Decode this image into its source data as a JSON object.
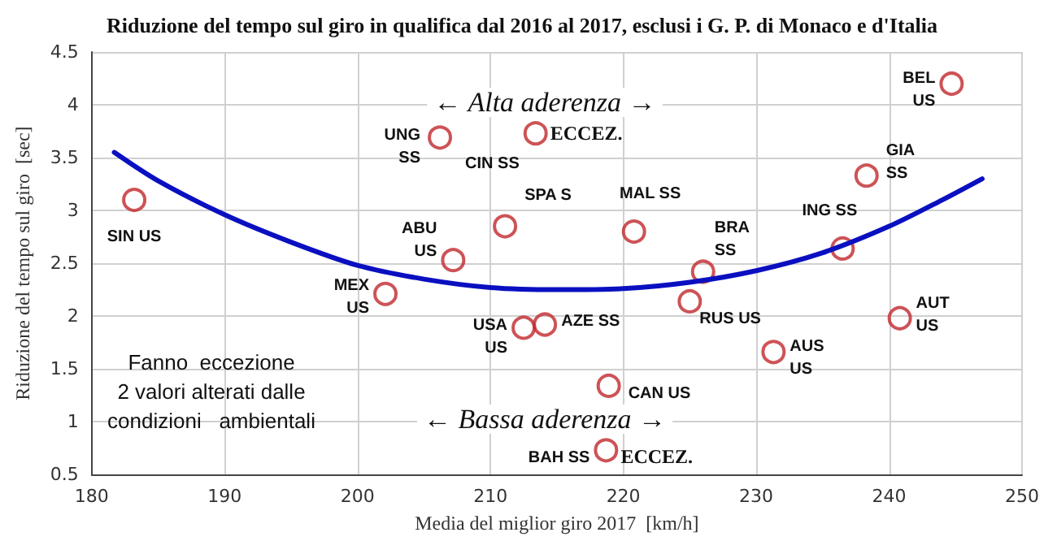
{
  "chart_data": {
    "type": "scatter",
    "title": "Riduzione del tempo sul giro in qualifica dal 2016 al 2017, esclusi i G. P. di Monaco e d'Italia",
    "xlabel": "Media del miglior giro 2017  [km/h]",
    "ylabel": "Riduzione del tempo sul giro  [sec]",
    "xlim": [
      180,
      250
    ],
    "xticks": [
      180,
      190,
      200,
      210,
      220,
      230,
      240,
      250
    ],
    "ylim": [
      0.5,
      4.5
    ],
    "yticks": [
      0.5,
      1,
      1.5,
      2,
      2.5,
      3,
      3.5,
      4,
      4.5
    ],
    "grid": true,
    "marker": "circle",
    "series": [
      {
        "color": "#c0282d",
        "x": [
          183.2,
          206.2,
          213.4,
          211.1,
          207.2,
          202.1,
          212.5,
          214.1,
          220.8,
          226,
          225,
          218.9,
          218.7,
          231.3,
          236.5,
          238.3,
          240.8,
          244.7
        ],
        "values": [
          3.1,
          3.69,
          3.73,
          2.85,
          2.53,
          2.21,
          1.89,
          1.92,
          2.8,
          2.42,
          2.14,
          1.34,
          0.73,
          1.66,
          2.64,
          3.33,
          1.98,
          4.2
        ]
      },
      {
        "type": "line",
        "color": "#0a10c0",
        "marker": "none",
        "x": [
          181.7,
          185,
          190,
          195,
          200,
          205,
          210,
          215,
          220,
          225,
          230,
          235,
          240,
          244,
          247
        ],
        "values": [
          3.55,
          3.28,
          2.96,
          2.7,
          2.48,
          2.35,
          2.27,
          2.25,
          2.26,
          2.32,
          2.43,
          2.6,
          2.85,
          3.1,
          3.3
        ]
      }
    ],
    "annotations": [
      {
        "text": "SIN US",
        "x": 183.2,
        "y": 3.1
      },
      {
        "text": "UNG\nSS",
        "x": 206.2,
        "y": 3.69
      },
      {
        "text": "CIN SS",
        "x": 213.4,
        "y": 3.73
      },
      {
        "text": "ECCEZ.",
        "x": 213.4,
        "y": 3.73
      },
      {
        "text": "SPA S",
        "x": 211.1,
        "y": 2.85
      },
      {
        "text": "ABU\nUS",
        "x": 207.2,
        "y": 2.53
      },
      {
        "text": "MEX\nUS",
        "x": 202.1,
        "y": 2.21
      },
      {
        "text": "USA\nUS",
        "x": 212.5,
        "y": 1.89
      },
      {
        "text": "AZE SS",
        "x": 214.1,
        "y": 1.92
      },
      {
        "text": "MAL SS",
        "x": 220.8,
        "y": 2.8
      },
      {
        "text": "BRA\nSS",
        "x": 226,
        "y": 2.42
      },
      {
        "text": "RUS US",
        "x": 225,
        "y": 2.14
      },
      {
        "text": "CAN US",
        "x": 218.9,
        "y": 1.34
      },
      {
        "text": "BAH SS",
        "x": 218.7,
        "y": 0.73
      },
      {
        "text": "ECCEZ.",
        "x": 218.7,
        "y": 0.73
      },
      {
        "text": "AUS\nUS",
        "x": 231.3,
        "y": 1.66
      },
      {
        "text": "ING SS",
        "x": 236.5,
        "y": 2.64
      },
      {
        "text": "GIA\nSS",
        "x": 238.3,
        "y": 3.33
      },
      {
        "text": "AUT\nUS",
        "x": 240.8,
        "y": 1.98
      },
      {
        "text": "BEL\nUS",
        "x": 244.7,
        "y": 4.2
      },
      "← Alta aderenza →",
      "← Bassa aderenza →",
      "Fanno  eccezione\n2 valori alterati dalle\ncondizioni   ambientali"
    ]
  }
}
